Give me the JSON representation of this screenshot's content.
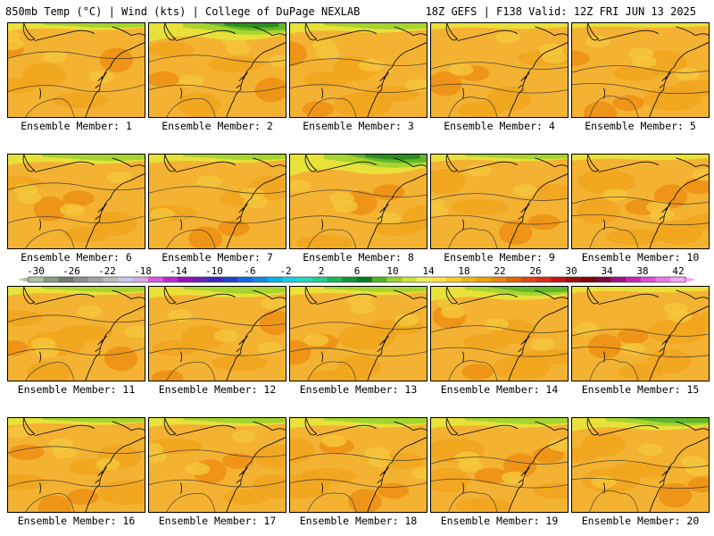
{
  "header": {
    "left_title": "850mb Temp (°C) | Wind (kts) | College of DuPage NEXLAB",
    "right_title": "18Z GEFS | F138 Valid: 12Z FRI JUN 13 2025"
  },
  "panels": [
    {
      "label": "Ensemble Member: 1",
      "green": 0.15,
      "warm": 0.25
    },
    {
      "label": "Ensemble Member: 2",
      "green": 0.55,
      "warm": 0.2
    },
    {
      "label": "Ensemble Member: 3",
      "green": 0.25,
      "warm": 0.4
    },
    {
      "label": "Ensemble Member: 4",
      "green": 0.1,
      "warm": 0.3
    },
    {
      "label": "Ensemble Member: 5",
      "green": 0.05,
      "warm": 0.45
    },
    {
      "label": "Ensemble Member: 6",
      "green": 0.25,
      "warm": 0.25
    },
    {
      "label": "Ensemble Member: 7",
      "green": 0.2,
      "warm": 0.3
    },
    {
      "label": "Ensemble Member: 8",
      "green": 0.65,
      "warm": 0.2
    },
    {
      "label": "Ensemble Member: 9",
      "green": 0.15,
      "warm": 0.3
    },
    {
      "label": "Ensemble Member: 10",
      "green": 0.1,
      "warm": 0.6
    },
    {
      "label": "Ensemble Member: 11",
      "green": 0.2,
      "warm": 0.35
    },
    {
      "label": "Ensemble Member: 12",
      "green": 0.3,
      "warm": 0.3
    },
    {
      "label": "Ensemble Member: 13",
      "green": 0.2,
      "warm": 0.35
    },
    {
      "label": "Ensemble Member: 14",
      "green": 0.4,
      "warm": 0.35
    },
    {
      "label": "Ensemble Member: 15",
      "green": 0.1,
      "warm": 0.35
    },
    {
      "label": "Ensemble Member: 16",
      "green": 0.15,
      "warm": 0.45
    },
    {
      "label": "Ensemble Member: 17",
      "green": 0.2,
      "warm": 0.35
    },
    {
      "label": "Ensemble Member: 18",
      "green": 0.25,
      "warm": 0.55
    },
    {
      "label": "Ensemble Member: 19",
      "green": 0.25,
      "warm": 0.45
    },
    {
      "label": "Ensemble Member: 20",
      "green": 0.35,
      "warm": 0.4
    }
  ],
  "colorbar": {
    "tick_labels": [
      "-30",
      "-26",
      "-22",
      "-18",
      "-14",
      "-10",
      "-6",
      "-2",
      "2",
      "6",
      "10",
      "14",
      "18",
      "22",
      "26",
      "30",
      "34",
      "38",
      "42"
    ],
    "colors": [
      "#a9c4a4",
      "#889c88",
      "#6e7b70",
      "#8f8f8f",
      "#a3a3a3",
      "#bbbbbb",
      "#c8c8e8",
      "#d9a7e6",
      "#d75ae0",
      "#c026d0",
      "#9a11b8",
      "#6a1fb8",
      "#3a2ab8",
      "#2244c8",
      "#1a66e0",
      "#0f8ce8",
      "#06b3e8",
      "#19cfe0",
      "#27d6c2",
      "#1fcf8e",
      "#17b85a",
      "#109a38",
      "#0c7c24",
      "#57b22a",
      "#9ad12f",
      "#cfe03a",
      "#f0f058",
      "#fde047",
      "#f8cd2e",
      "#f2b51d",
      "#efa10f",
      "#ea860b",
      "#e0660a",
      "#e04813",
      "#e02a1a",
      "#c0141a",
      "#9b0a10",
      "#7c0606",
      "#7a0a3a",
      "#a0147a",
      "#c827b4",
      "#e04cd4",
      "#f078e6",
      "#f7a6f0"
    ]
  },
  "palette": {
    "green_dark": "#2e8f1c",
    "green_mid": "#64b62a",
    "green_light": "#a7d42f",
    "yellow": "#e7e13a",
    "gold": "#f5c73c",
    "orange_light": "#f4b233",
    "orange": "#f0a51d",
    "orange_deep": "#ec8f14",
    "lines": "#333333"
  }
}
